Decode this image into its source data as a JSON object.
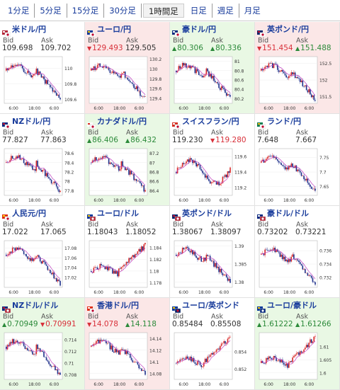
{
  "tabs": [
    {
      "label": "1分足",
      "active": false
    },
    {
      "label": "5分足",
      "active": false
    },
    {
      "label": "15分足",
      "active": false
    },
    {
      "label": "30分足",
      "active": false
    },
    {
      "label": "1時間足",
      "active": true
    },
    {
      "label": "日足",
      "active": false
    },
    {
      "label": "週足",
      "active": false
    },
    {
      "label": "月足",
      "active": false
    }
  ],
  "bid_label": "Bid",
  "ask_label": "Ask",
  "x_labels": [
    "6:00",
    "18:00",
    "6:00"
  ],
  "colors": {
    "up_bg": "#e9f8e4",
    "down_bg": "#fbe7e7",
    "up_text": "#2c8a3a",
    "down_text": "#d8303a",
    "candle_up": "#d82a2a",
    "candle_down": "#1e2f8a",
    "ma": "#c040c0"
  },
  "pairs": [
    {
      "title": "米ドル/円",
      "flag": "us-jp",
      "dir": "flat",
      "bid": "109.698",
      "ask": "109.702",
      "bid_dir": "",
      "ask_dir": "",
      "y_ticks": [
        "110",
        "109.8",
        "109.6"
      ],
      "y_range": [
        109.55,
        110.15
      ],
      "trend": "drop",
      "key": "usdjpy"
    },
    {
      "title": "ユーロ/円",
      "flag": "eu-jp",
      "dir": "down",
      "bid": "129.493",
      "ask": "129.505",
      "bid_dir": "down",
      "ask_dir": "",
      "y_ticks": [
        "130.2",
        "130",
        "129.8",
        "129.6",
        "129.4"
      ],
      "y_range": [
        129.3,
        130.25
      ],
      "trend": "drop",
      "key": "eurjpy"
    },
    {
      "title": "豪ドル/円",
      "flag": "au-jp",
      "dir": "up",
      "bid": "80.306",
      "ask": "80.336",
      "bid_dir": "up",
      "ask_dir": "up",
      "y_ticks": [
        "81",
        "80.8",
        "80.6",
        "80.4",
        "80.2"
      ],
      "y_range": [
        80.1,
        81.1
      ],
      "trend": "drop",
      "key": "audjpy"
    },
    {
      "title": "英ポンド/円",
      "flag": "gb-jp",
      "dir": "down",
      "bid": "151.454",
      "ask": "151.488",
      "bid_dir": "down",
      "ask_dir": "up",
      "y_ticks": [
        "152.5",
        "152",
        "151.5"
      ],
      "y_range": [
        151.3,
        152.7
      ],
      "trend": "drop",
      "key": "gbpjpy"
    },
    {
      "title": "NZドル/円",
      "flag": "nz-jp",
      "dir": "flat",
      "bid": "77.827",
      "ask": "77.863",
      "bid_dir": "",
      "ask_dir": "",
      "y_ticks": [
        "78.6",
        "78.4",
        "78.2",
        "78",
        "77.8"
      ],
      "y_range": [
        77.7,
        78.7
      ],
      "trend": "drop",
      "key": "nzdjpy"
    },
    {
      "title": "カナダドル/円",
      "flag": "ca-jp",
      "dir": "up",
      "bid": "86.406",
      "ask": "86.432",
      "bid_dir": "up",
      "ask_dir": "up",
      "y_ticks": [
        "87.2",
        "87",
        "86.8",
        "86.6",
        "86.4"
      ],
      "y_range": [
        86.3,
        87.3
      ],
      "trend": "drop",
      "key": "cadjpy"
    },
    {
      "title": "スイスフラン/円",
      "flag": "ch-jp",
      "dir": "flat",
      "bid": "119.230",
      "ask": "119.280",
      "bid_dir": "",
      "ask_dir": "down",
      "y_ticks": [
        "119.6",
        "119.4",
        "119.2"
      ],
      "y_range": [
        119.1,
        119.7
      ],
      "trend": "wave",
      "key": "chfjpy"
    },
    {
      "title": "ランド/円",
      "flag": "za-jp",
      "dir": "flat",
      "bid": "7.648",
      "ask": "7.667",
      "bid_dir": "",
      "ask_dir": "",
      "y_ticks": [
        "7.75",
        "7.7",
        "7.65"
      ],
      "y_range": [
        7.62,
        7.78
      ],
      "trend": "drop",
      "key": "zarjpy"
    },
    {
      "title": "人民元/円",
      "flag": "cn-jp",
      "dir": "flat",
      "bid": "17.022",
      "ask": "17.065",
      "bid_dir": "",
      "ask_dir": "",
      "y_ticks": [
        "17.08",
        "17.06",
        "17.04",
        "17.02"
      ],
      "y_range": [
        17.0,
        17.095
      ],
      "trend": "drop",
      "key": "cnyjpy"
    },
    {
      "title": "ユーロ/ドル",
      "flag": "eu-us",
      "dir": "flat",
      "bid": "1.18043",
      "ask": "1.18052",
      "bid_dir": "",
      "ask_dir": "",
      "y_ticks": [
        "1.184",
        "1.182",
        "1.18",
        "1.178"
      ],
      "y_range": [
        1.1772,
        1.1852
      ],
      "trend": "rise",
      "key": "eurusd"
    },
    {
      "title": "英ポンド/ドル",
      "flag": "gb-us",
      "dir": "flat",
      "bid": "1.38067",
      "ask": "1.38097",
      "bid_dir": "",
      "ask_dir": "",
      "y_ticks": [
        "1.39",
        "1.385",
        "1.38"
      ],
      "y_range": [
        1.3785,
        1.3915
      ],
      "trend": "drop",
      "key": "gbpusd"
    },
    {
      "title": "豪ドル/ドル",
      "flag": "au-us",
      "dir": "flat",
      "bid": "0.73202",
      "ask": "0.73221",
      "bid_dir": "",
      "ask_dir": "",
      "y_ticks": [
        "0.736",
        "0.734",
        "0.732"
      ],
      "y_range": [
        0.7305,
        0.7375
      ],
      "trend": "drop",
      "key": "audusd"
    },
    {
      "title": "NZドル/ドル",
      "flag": "nz-us",
      "dir": "up",
      "bid": "0.70949",
      "ask": "0.70991",
      "bid_dir": "up",
      "ask_dir": "down",
      "y_ticks": [
        "0.714",
        "0.712",
        "0.71",
        "0.708"
      ],
      "y_range": [
        0.7072,
        0.7152
      ],
      "trend": "drop",
      "key": "nzdusd"
    },
    {
      "title": "香港ドル/円",
      "flag": "hk-jp",
      "dir": "down",
      "bid": "14.078",
      "ask": "14.118",
      "bid_dir": "down",
      "ask_dir": "up",
      "y_ticks": [
        "14.14",
        "14.12",
        "14.1",
        "14.08"
      ],
      "y_range": [
        14.07,
        14.15
      ],
      "trend": "drop",
      "key": "hkdjpy"
    },
    {
      "title": "ユーロ/英ポンド",
      "flag": "eu-gb",
      "dir": "flat",
      "bid": "0.85484",
      "ask": "0.85508",
      "bid_dir": "",
      "ask_dir": "",
      "y_ticks": [
        "0.854",
        "0.852"
      ],
      "y_range": [
        0.8508,
        0.8562
      ],
      "trend": "rise",
      "key": "eurgbp"
    },
    {
      "title": "ユーロ/豪ドル",
      "flag": "eu-au",
      "dir": "up",
      "bid": "1.61222",
      "ask": "1.61266",
      "bid_dir": "up",
      "ask_dir": "up",
      "y_ticks": [
        "1.61",
        "1.605",
        "1.6"
      ],
      "y_range": [
        1.5975,
        1.6155
      ],
      "trend": "rise",
      "key": "euraud"
    }
  ]
}
